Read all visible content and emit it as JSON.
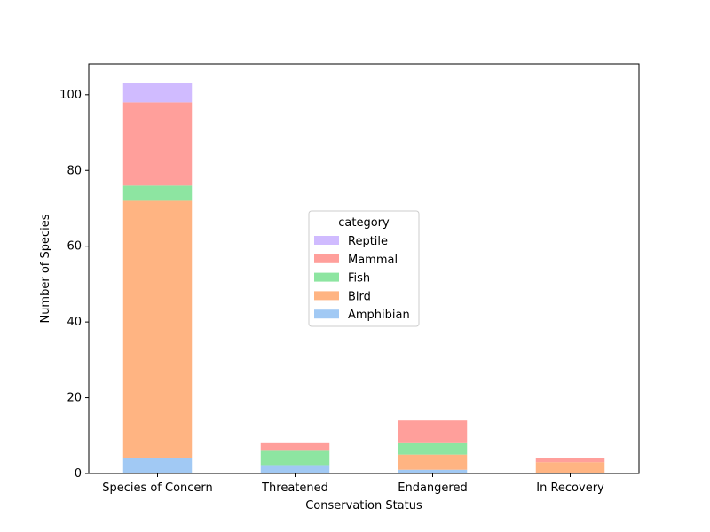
{
  "chart_data": {
    "type": "bar",
    "stacked": true,
    "title": "",
    "xlabel": "Conservation Status",
    "ylabel": "Number of Species",
    "categories": [
      "Species of Concern",
      "Threatened",
      "Endangered",
      "In Recovery"
    ],
    "series": [
      {
        "name": "Amphibian",
        "color": "#a1c9f4",
        "values": [
          4,
          2,
          1,
          0
        ]
      },
      {
        "name": "Bird",
        "color": "#ffb482",
        "values": [
          68,
          0,
          4,
          3
        ]
      },
      {
        "name": "Fish",
        "color": "#8de5a1",
        "values": [
          4,
          4,
          3,
          0
        ]
      },
      {
        "name": "Mammal",
        "color": "#ff9f9b",
        "values": [
          22,
          2,
          6,
          1
        ]
      },
      {
        "name": "Reptile",
        "color": "#d0bbff",
        "values": [
          5,
          0,
          0,
          0
        ]
      }
    ],
    "ylim": [
      0,
      108.15
    ],
    "yticks": [
      0,
      20,
      40,
      60,
      80,
      100
    ],
    "legend": {
      "title": "category",
      "placement": "center",
      "order": [
        "Reptile",
        "Mammal",
        "Fish",
        "Bird",
        "Amphibian"
      ]
    },
    "grid": false
  }
}
